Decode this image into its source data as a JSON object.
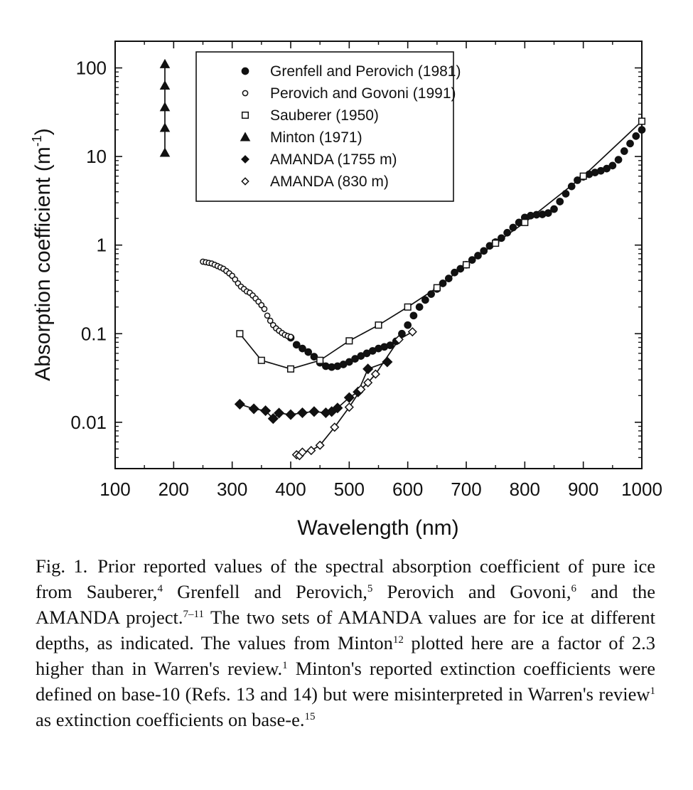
{
  "chart_data": {
    "type": "scatter",
    "xlabel": "Wavelength (nm)",
    "ylabel": "Absorption coefficient (m",
    "ylabel_sup": "-1",
    "ylabel_close": ")",
    "xlim": [
      100,
      1000
    ],
    "ylim": [
      0.003,
      200
    ],
    "yscale": "log",
    "x_ticks": [
      "100",
      "200",
      "300",
      "400",
      "500",
      "600",
      "700",
      "800",
      "900",
      "1000"
    ],
    "y_ticks": [
      "0.01",
      "0.1",
      "1",
      "10",
      "100"
    ],
    "legend_position": "top-center",
    "series": [
      {
        "name": "Grenfell and Perovich (1981)",
        "marker": "filled-circle",
        "line": false,
        "x": [
          400,
          410,
          420,
          430,
          440,
          450,
          460,
          470,
          480,
          490,
          500,
          510,
          520,
          530,
          540,
          550,
          560,
          570,
          580,
          590,
          600,
          610,
          620,
          630,
          640,
          650,
          660,
          670,
          680,
          690,
          700,
          710,
          720,
          730,
          740,
          750,
          760,
          770,
          780,
          790,
          800,
          810,
          820,
          830,
          840,
          850,
          860,
          870,
          880,
          890,
          900,
          910,
          920,
          930,
          940,
          950,
          960,
          970,
          980,
          990,
          1000
        ],
        "y": [
          0.09,
          0.075,
          0.068,
          0.062,
          0.055,
          0.047,
          0.043,
          0.042,
          0.043,
          0.045,
          0.048,
          0.052,
          0.056,
          0.06,
          0.064,
          0.068,
          0.071,
          0.074,
          0.082,
          0.1,
          0.125,
          0.16,
          0.2,
          0.24,
          0.28,
          0.32,
          0.37,
          0.42,
          0.49,
          0.54,
          0.6,
          0.68,
          0.76,
          0.86,
          0.98,
          1.08,
          1.2,
          1.38,
          1.58,
          1.8,
          2.05,
          2.15,
          2.2,
          2.22,
          2.3,
          2.55,
          3.1,
          3.8,
          4.6,
          5.4,
          5.9,
          6.3,
          6.6,
          6.9,
          7.3,
          7.9,
          9.2,
          11.5,
          14,
          17,
          20
        ]
      },
      {
        "name": "Perovich and Govoni (1991)",
        "marker": "open-circle",
        "line": false,
        "x": [
          250,
          255,
          260,
          265,
          270,
          275,
          280,
          285,
          290,
          295,
          300,
          305,
          310,
          315,
          320,
          325,
          330,
          335,
          340,
          345,
          350,
          355,
          360,
          365,
          370,
          375,
          380,
          385,
          390,
          395,
          400
        ],
        "y": [
          0.65,
          0.64,
          0.63,
          0.62,
          0.6,
          0.58,
          0.56,
          0.54,
          0.51,
          0.48,
          0.45,
          0.41,
          0.37,
          0.34,
          0.32,
          0.3,
          0.29,
          0.27,
          0.25,
          0.23,
          0.21,
          0.19,
          0.16,
          0.14,
          0.125,
          0.115,
          0.108,
          0.102,
          0.097,
          0.094,
          0.092
        ]
      },
      {
        "name": "Sauberer (1950)",
        "marker": "open-square",
        "line": true,
        "x": [
          313,
          350,
          400,
          450,
          500,
          550,
          600,
          650,
          700,
          750,
          800,
          900,
          1000
        ],
        "y": [
          0.1,
          0.05,
          0.04,
          0.05,
          0.083,
          0.125,
          0.2,
          0.33,
          0.6,
          1.05,
          1.8,
          6,
          25
        ]
      },
      {
        "name": "Minton (1971)",
        "marker": "filled-triangle",
        "line": true,
        "x": [
          185,
          185,
          185,
          185,
          185
        ],
        "y": [
          11,
          21,
          36,
          63,
          110
        ]
      },
      {
        "name": "AMANDA (1755 m)",
        "marker": "filled-diamond",
        "line": true,
        "x": [
          313,
          337,
          357,
          370,
          380,
          400,
          420,
          440,
          460,
          470,
          480,
          500,
          515,
          532,
          565
        ],
        "y": [
          0.016,
          0.0142,
          0.0135,
          0.011,
          0.0127,
          0.0122,
          0.0128,
          0.0132,
          0.0128,
          0.0132,
          0.0145,
          0.019,
          0.022,
          0.04,
          0.048
        ]
      },
      {
        "name": "AMANDA  (830 m)",
        "marker": "open-diamond",
        "line": true,
        "x": [
          410,
          415,
          420,
          435,
          450,
          475,
          500,
          520,
          532,
          545,
          585,
          608
        ],
        "y": [
          0.0043,
          0.0042,
          0.0046,
          0.0048,
          0.0055,
          0.0088,
          0.0148,
          0.0235,
          0.028,
          0.035,
          0.086,
          0.105
        ]
      }
    ]
  },
  "caption": {
    "label": "Fig. 1.",
    "text_1": "Prior reported values of the spectral absorption coefficient of pure ice from Sauberer,",
    "ref_1": "4",
    "text_2": " Grenfell and Perovich,",
    "ref_2": "5",
    "text_3": " Perovich and Govoni,",
    "ref_3": "6",
    "text_4": " and the AMANDA project.",
    "ref_4": "7–11",
    "text_5": " The two sets of AMANDA values are for ice at different depths, as indicated. The values from Minton",
    "ref_5": "12",
    "text_6": " plotted here are a factor of 2.3 higher than in Warren's review.",
    "ref_6": "1",
    "text_7": " Minton's reported extinction coefficients were defined on base-10 (Refs. 13 and 14) but were misinterpreted in Warren's review",
    "ref_7": "1",
    "text_8": " as extinction coefficients on base-e.",
    "ref_8": "15"
  }
}
